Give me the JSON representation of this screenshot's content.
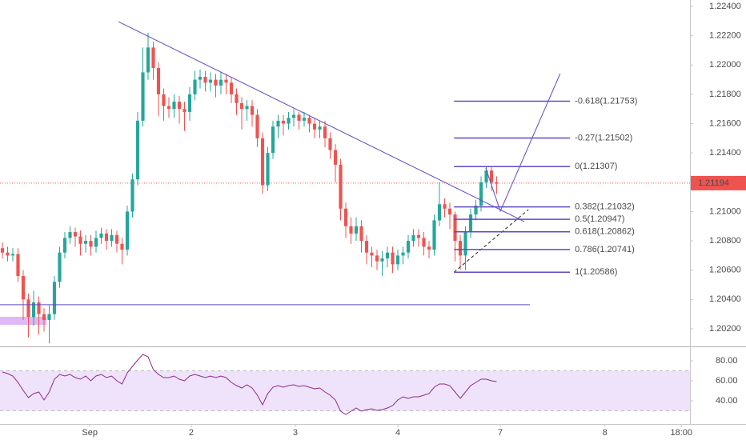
{
  "chart_data": {
    "type": "candlestick",
    "up_color": "#26a69a",
    "down_color": "#ef5350",
    "xlim": [
      -0.46,
      132.15
    ],
    "xticks": [
      {
        "value": 16.8,
        "label": "Sep"
      },
      {
        "value": 36.3,
        "label": "2"
      },
      {
        "value": 56.3,
        "label": "3"
      },
      {
        "value": 76.0,
        "label": "4"
      },
      {
        "value": 95.7,
        "label": "7"
      },
      {
        "value": 115.8,
        "label": "8"
      },
      {
        "value": 130.5,
        "label": "18:00"
      }
    ],
    "ylim": [
      1.20085,
      1.22444
    ],
    "yticks": [
      {
        "value": 1.224,
        "label": "1.22400"
      },
      {
        "value": 1.222,
        "label": "1.22200"
      },
      {
        "value": 1.22,
        "label": "1.22000"
      },
      {
        "value": 1.218,
        "label": "1.21800"
      },
      {
        "value": 1.216,
        "label": "1.21600"
      },
      {
        "value": 1.214,
        "label": "1.21400"
      },
      {
        "value": 1.212,
        "label": "1.21200"
      },
      {
        "value": 1.21,
        "label": "1.21000"
      },
      {
        "value": 1.208,
        "label": "1.20800"
      },
      {
        "value": 1.206,
        "label": "1.20600"
      },
      {
        "value": 1.204,
        "label": "1.20400"
      },
      {
        "value": 1.202,
        "label": "1.20200"
      }
    ],
    "candles": [
      [
        1.2075,
        1.2079,
        1.2068,
        1.2072
      ],
      [
        1.2072,
        1.2076,
        1.2066,
        1.207
      ],
      [
        1.207,
        1.2075,
        1.2066,
        1.2071
      ],
      [
        1.2071,
        1.2075,
        1.2052,
        1.2056
      ],
      [
        1.2056,
        1.206,
        1.2026,
        1.204
      ],
      [
        1.204,
        1.2044,
        1.2014,
        1.2028
      ],
      [
        1.2028,
        1.2046,
        1.2022,
        1.2038
      ],
      [
        1.2038,
        1.2042,
        1.2016,
        1.203
      ],
      [
        1.203,
        1.2034,
        1.2018,
        1.2026
      ],
      [
        1.2026,
        1.2036,
        1.201,
        1.203
      ],
      [
        1.203,
        1.2056,
        1.2026,
        1.2052
      ],
      [
        1.2052,
        1.2076,
        1.2048,
        1.2072
      ],
      [
        1.2072,
        1.2086,
        1.2068,
        1.2082
      ],
      [
        1.2082,
        1.209,
        1.2078,
        1.2086
      ],
      [
        1.2086,
        1.2089,
        1.2076,
        1.2083
      ],
      [
        1.2083,
        1.2087,
        1.207,
        1.2078
      ],
      [
        1.2078,
        1.2084,
        1.2072,
        1.208
      ],
      [
        1.208,
        1.2084,
        1.207,
        1.2076
      ],
      [
        1.2076,
        1.2087,
        1.2072,
        1.2082
      ],
      [
        1.2082,
        1.2089,
        1.2078,
        1.2085
      ],
      [
        1.2085,
        1.2088,
        1.2074,
        1.208
      ],
      [
        1.208,
        1.2088,
        1.2076,
        1.2084
      ],
      [
        1.2084,
        1.2087,
        1.2072,
        1.2078
      ],
      [
        1.2078,
        1.2082,
        1.2064,
        1.2074
      ],
      [
        1.2074,
        1.2104,
        1.207,
        1.21
      ],
      [
        1.21,
        1.2126,
        1.2096,
        1.2122
      ],
      [
        1.2122,
        1.2168,
        1.2118,
        1.2162
      ],
      [
        1.2162,
        1.2212,
        1.2158,
        1.2195
      ],
      [
        1.2195,
        1.2222,
        1.219,
        1.2212
      ],
      [
        1.2212,
        1.2216,
        1.219,
        1.2198
      ],
      [
        1.2198,
        1.2202,
        1.2165,
        1.218
      ],
      [
        1.218,
        1.2184,
        1.2162,
        1.2172
      ],
      [
        1.2172,
        1.2178,
        1.2164,
        1.217
      ],
      [
        1.217,
        1.218,
        1.2164,
        1.2175
      ],
      [
        1.2175,
        1.2179,
        1.216,
        1.217
      ],
      [
        1.217,
        1.2175,
        1.2155,
        1.2168
      ],
      [
        1.2168,
        1.2185,
        1.2162,
        1.218
      ],
      [
        1.218,
        1.2196,
        1.2176,
        1.219
      ],
      [
        1.219,
        1.2197,
        1.2184,
        1.2192
      ],
      [
        1.2192,
        1.2196,
        1.2182,
        1.2188
      ],
      [
        1.2188,
        1.2195,
        1.2182,
        1.219
      ],
      [
        1.219,
        1.2194,
        1.2178,
        1.2186
      ],
      [
        1.2186,
        1.2195,
        1.218,
        1.219
      ],
      [
        1.219,
        1.2194,
        1.218,
        1.2188
      ],
      [
        1.2188,
        1.2192,
        1.2174,
        1.218
      ],
      [
        1.218,
        1.2184,
        1.2166,
        1.2174
      ],
      [
        1.2174,
        1.2178,
        1.2156,
        1.217
      ],
      [
        1.217,
        1.2176,
        1.2162,
        1.2172
      ],
      [
        1.2172,
        1.2176,
        1.2158,
        1.2166
      ],
      [
        1.2166,
        1.217,
        1.2144,
        1.215
      ],
      [
        1.215,
        1.2154,
        1.2112,
        1.2118
      ],
      [
        1.2118,
        1.2144,
        1.2114,
        1.214
      ],
      [
        1.214,
        1.2162,
        1.2136,
        1.2158
      ],
      [
        1.2158,
        1.2166,
        1.215,
        1.2162
      ],
      [
        1.2162,
        1.2166,
        1.2152,
        1.216
      ],
      [
        1.216,
        1.2168,
        1.2156,
        1.2164
      ],
      [
        1.2164,
        1.217,
        1.2158,
        1.2166
      ],
      [
        1.2166,
        1.2168,
        1.2156,
        1.2162
      ],
      [
        1.2162,
        1.2168,
        1.2158,
        1.2164
      ],
      [
        1.2164,
        1.2166,
        1.2154,
        1.216
      ],
      [
        1.216,
        1.2164,
        1.215,
        1.2156
      ],
      [
        1.2156,
        1.2162,
        1.215,
        1.2158
      ],
      [
        1.2158,
        1.2162,
        1.2144,
        1.215
      ],
      [
        1.215,
        1.2154,
        1.2136,
        1.2142
      ],
      [
        1.2142,
        1.2146,
        1.212,
        1.2132
      ],
      [
        1.2132,
        1.2136,
        1.2094,
        1.2102
      ],
      [
        1.2102,
        1.2106,
        1.2082,
        1.209
      ],
      [
        1.209,
        1.2096,
        1.2078,
        1.2085
      ],
      [
        1.2085,
        1.2096,
        1.208,
        1.209
      ],
      [
        1.209,
        1.2094,
        1.2072,
        1.208
      ],
      [
        1.208,
        1.2084,
        1.2064,
        1.2072
      ],
      [
        1.2072,
        1.2076,
        1.2062,
        1.207
      ],
      [
        1.207,
        1.2074,
        1.206,
        1.2066
      ],
      [
        1.2066,
        1.2073,
        1.2056,
        1.2068
      ],
      [
        1.2068,
        1.2076,
        1.2062,
        1.2072
      ],
      [
        1.2072,
        1.2076,
        1.2058,
        1.2064
      ],
      [
        1.2064,
        1.2074,
        1.206,
        1.207
      ],
      [
        1.207,
        1.2076,
        1.2064,
        1.2072
      ],
      [
        1.2072,
        1.2084,
        1.2068,
        1.208
      ],
      [
        1.208,
        1.2088,
        1.2076,
        1.2084
      ],
      [
        1.2084,
        1.2088,
        1.2076,
        1.2082
      ],
      [
        1.2082,
        1.2086,
        1.207,
        1.2076
      ],
      [
        1.2076,
        1.208,
        1.2068,
        1.2074
      ],
      [
        1.2074,
        1.2098,
        1.207,
        1.2094
      ],
      [
        1.2094,
        1.212,
        1.209,
        1.2105
      ],
      [
        1.2105,
        1.2109,
        1.2096,
        1.2102
      ],
      [
        1.2102,
        1.2106,
        1.2088,
        1.2098
      ],
      [
        1.2098,
        1.21,
        1.2066,
        1.208
      ],
      [
        1.208,
        1.2084,
        1.206,
        1.207
      ],
      [
        1.207,
        1.209,
        1.206,
        1.2086
      ],
      [
        1.2086,
        1.2102,
        1.2082,
        1.2098
      ],
      [
        1.2098,
        1.2108,
        1.2094,
        1.2104
      ],
      [
        1.2104,
        1.2124,
        1.21,
        1.212
      ],
      [
        1.212,
        1.2131,
        1.2116,
        1.2128
      ],
      [
        1.2128,
        1.2131,
        1.2114,
        1.212
      ],
      [
        1.212,
        1.2124,
        1.2112,
        1.2119
      ]
    ],
    "last_price": 1.21194,
    "last_price_color": "#ef5350",
    "drawing_color": "#5e4bc4",
    "trendline": {
      "x": [
        22.3,
        100.3
      ],
      "y": [
        1.22296,
        1.20932
      ]
    },
    "support_line": {
      "x": [
        -0.46,
        101.4
      ],
      "y": [
        1.20364,
        1.20364
      ]
    },
    "zone": {
      "x": [
        -0.46,
        8.46
      ],
      "y": [
        1.20227,
        1.20282
      ],
      "color": "#e0b8f5"
    },
    "dashed_line": {
      "x": [
        86.8,
        101.1
      ],
      "y": [
        1.20586,
        1.21013
      ]
    },
    "projection": {
      "x": [
        92.9,
        95.7,
        107.2
      ],
      "y": [
        1.21297,
        1.21003,
        1.21941
      ]
    },
    "fib_x": [
      86.8,
      109.1
    ],
    "fib_levels": [
      {
        "price": 1.21753,
        "label": "-0.618(1.21753)"
      },
      {
        "price": 1.21502,
        "label": "-0.27(1.21502)"
      },
      {
        "price": 1.21307,
        "label": "0(1.21307)"
      },
      {
        "price": 1.21032,
        "label": "0.382(1.21032)"
      },
      {
        "price": 1.20947,
        "label": "0.5(1.20947)"
      },
      {
        "price": 1.20862,
        "label": "0.618(1.20862)"
      },
      {
        "price": 1.20741,
        "label": "0.786(1.20741)"
      },
      {
        "price": 1.20586,
        "label": "1(1.20586)"
      }
    ],
    "indicator": {
      "type": "line",
      "color": "#8e2a8b",
      "ylim": [
        16.8,
        91.2
      ],
      "yticks": [
        {
          "value": 80,
          "label": "80.00"
        },
        {
          "value": 60,
          "label": "60.00"
        },
        {
          "value": 40,
          "label": "40.00"
        }
      ],
      "band": [
        30,
        70
      ],
      "band_color": "#efe3fb",
      "values": [
        68.8,
        67.2,
        64.8,
        58.4,
        50.4,
        43.2,
        47.2,
        48.8,
        40.8,
        48.8,
        61.6,
        66.4,
        64.8,
        66.4,
        63.2,
        61.6,
        64.8,
        60,
        64.8,
        66.4,
        63.2,
        64.8,
        60,
        56.8,
        68,
        74.4,
        80.8,
        86.4,
        84,
        71.2,
        66.4,
        63.2,
        63.2,
        64.8,
        61.6,
        60,
        64.8,
        66.4,
        64.8,
        63.2,
        64.8,
        63.2,
        64.8,
        63.2,
        58.4,
        55.2,
        52.8,
        56,
        52.8,
        45.6,
        36,
        47.2,
        53.6,
        55.2,
        53.6,
        55.2,
        56,
        54.4,
        55.2,
        53.6,
        52,
        52.8,
        48.8,
        45.6,
        40.8,
        29.6,
        26.4,
        29.6,
        32.8,
        29.6,
        31.2,
        32,
        30.4,
        31.2,
        32.8,
        35.2,
        40.8,
        44,
        42.4,
        44,
        44,
        45.6,
        47.2,
        53.6,
        56.8,
        56.8,
        55.2,
        48.8,
        42.4,
        48.8,
        55.2,
        58.4,
        61.6,
        61.6,
        60,
        59.2
      ]
    }
  }
}
